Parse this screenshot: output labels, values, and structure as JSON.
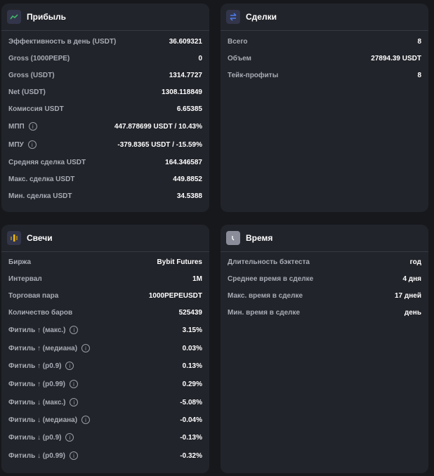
{
  "profit": {
    "title": "Прибыль",
    "icon": "trend-line-icon",
    "accent": "#3fbf6a",
    "rows": [
      {
        "label": "Эффективность в день (USDT)",
        "value": "36.609321"
      },
      {
        "label": "Gross (1000PEPE)",
        "value": "0"
      },
      {
        "label": "Gross (USDT)",
        "value": "1314.7727"
      },
      {
        "label": "Net (USDT)",
        "value": "1308.118849"
      },
      {
        "label": "Комиссия USDT",
        "value": "6.65385"
      },
      {
        "label": "МПП",
        "value": "447.878699 USDT / 10.43%",
        "info": true
      },
      {
        "label": "МПУ",
        "value": "-379.8365 USDT / -15.59%",
        "info": true
      },
      {
        "label": "Средняя сделка USDT",
        "value": "164.346587"
      },
      {
        "label": "Макс. сделка USDT",
        "value": "449.8852"
      },
      {
        "label": "Мин. сделка USDT",
        "value": "34.5388"
      }
    ]
  },
  "trades": {
    "title": "Сделки",
    "icon": "swap-arrows-icon",
    "accent": "#4d7cf0",
    "rows": [
      {
        "label": "Всего",
        "value": "8"
      },
      {
        "label": "Объем",
        "value": "27894.39 USDT"
      },
      {
        "label": "Тейк-профиты",
        "value": "8"
      }
    ]
  },
  "candles": {
    "title": "Свечи",
    "icon": "candlestick-icon",
    "accent": "#f0b90b",
    "rows": [
      {
        "label": "Биржа",
        "value": "Bybit Futures"
      },
      {
        "label": "Интервал",
        "value": "1M"
      },
      {
        "label": "Торговая пара",
        "value": "1000PEPEUSDT"
      },
      {
        "label": "Количество баров",
        "value": "525439"
      },
      {
        "label": "Фитиль ↑ (макс.)",
        "value": "3.15%",
        "info": true
      },
      {
        "label": "Фитиль ↑ (медиана)",
        "value": "0.03%",
        "info": true
      },
      {
        "label": "Фитиль ↑ (p0.9)",
        "value": "0.13%",
        "info": true
      },
      {
        "label": "Фитиль ↑ (p0.99)",
        "value": "0.29%",
        "info": true
      },
      {
        "label": "Фитиль ↓ (макс.)",
        "value": "-5.08%",
        "info": true
      },
      {
        "label": "Фитиль ↓ (медиана)",
        "value": "-0.04%",
        "info": true
      },
      {
        "label": "Фитиль ↓ (p0.9)",
        "value": "-0.13%",
        "info": true
      },
      {
        "label": "Фитиль ↓ (p0.99)",
        "value": "-0.32%",
        "info": true
      }
    ]
  },
  "time": {
    "title": "Время",
    "icon": "clock-icon",
    "accent": "#8a8d99",
    "rows": [
      {
        "label": "Длительность бэктеста",
        "value": "год"
      },
      {
        "label": "Среднее время в сделке",
        "value": "4 дня"
      },
      {
        "label": "Макс. время в сделке",
        "value": "17 дней"
      },
      {
        "label": "Мин. время в сделке",
        "value": "день"
      }
    ]
  }
}
